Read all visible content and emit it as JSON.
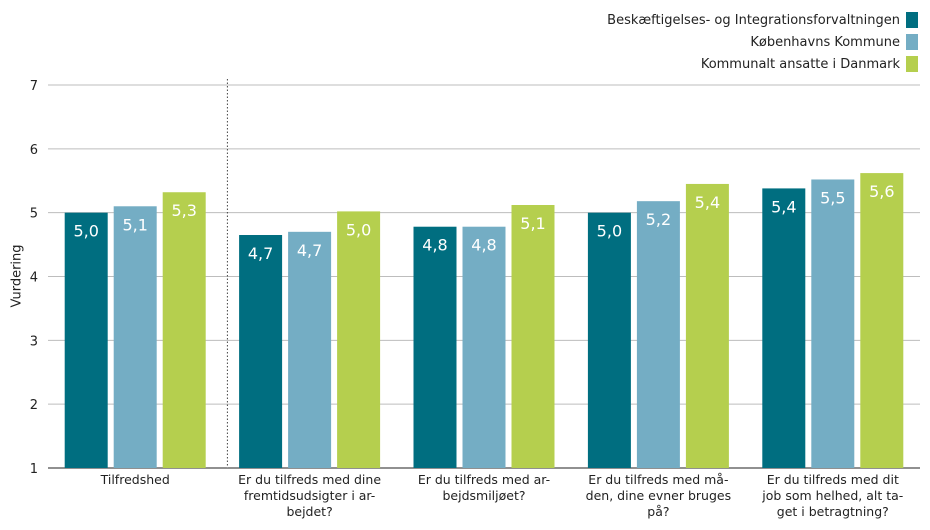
{
  "chart_data": {
    "type": "bar",
    "categories": [
      "Tilfredshed",
      "Er du tilfreds med dine fremtidsudsigter i arbejdet?",
      "Er du tilfreds med arbejdsmiljøet?",
      "Er du tilfreds med måden, dine evner bruges på?",
      "Er du tilfreds med dit job som helhed, alt taget i betragtning?"
    ],
    "category_lines": [
      [
        "Tilfredshed"
      ],
      [
        "Er du tilfreds med dine",
        "fremtidsudsigter i ar-",
        "bejdet?"
      ],
      [
        "Er du tilfreds med ar-",
        "bejdsmiljøet?"
      ],
      [
        "Er du tilfreds med må-",
        "den, dine evner bruges",
        "på?"
      ],
      [
        "Er du tilfreds med dit",
        "job som helhed, alt ta-",
        "get i betragtning?"
      ]
    ],
    "series": [
      {
        "name": "Beskæftigelses- og Integrationsforvaltningen",
        "color": "#006e80",
        "values": [
          5.0,
          4.65,
          4.78,
          5.0,
          5.38
        ],
        "labels": [
          "5,0",
          "4,7",
          "4,8",
          "5,0",
          "5,4"
        ]
      },
      {
        "name": "Københavns Kommune",
        "color": "#74adc4",
        "values": [
          5.1,
          4.7,
          4.78,
          5.18,
          5.52
        ],
        "labels": [
          "5,1",
          "4,7",
          "4,8",
          "5,2",
          "5,5"
        ]
      },
      {
        "name": "Kommunalt ansatte i Danmark",
        "color": "#b5cf4e",
        "values": [
          5.32,
          5.02,
          5.12,
          5.45,
          5.62
        ],
        "labels": [
          "5,3",
          "5,0",
          "5,1",
          "5,4",
          "5,6"
        ]
      }
    ],
    "ylabel": "Vurdering",
    "xlabel": "",
    "ylim": [
      1,
      7
    ],
    "yticks": [
      1,
      2,
      3,
      4,
      5,
      6,
      7
    ],
    "grid": true,
    "legend_position": "top-right",
    "divider_after_category": 0
  }
}
